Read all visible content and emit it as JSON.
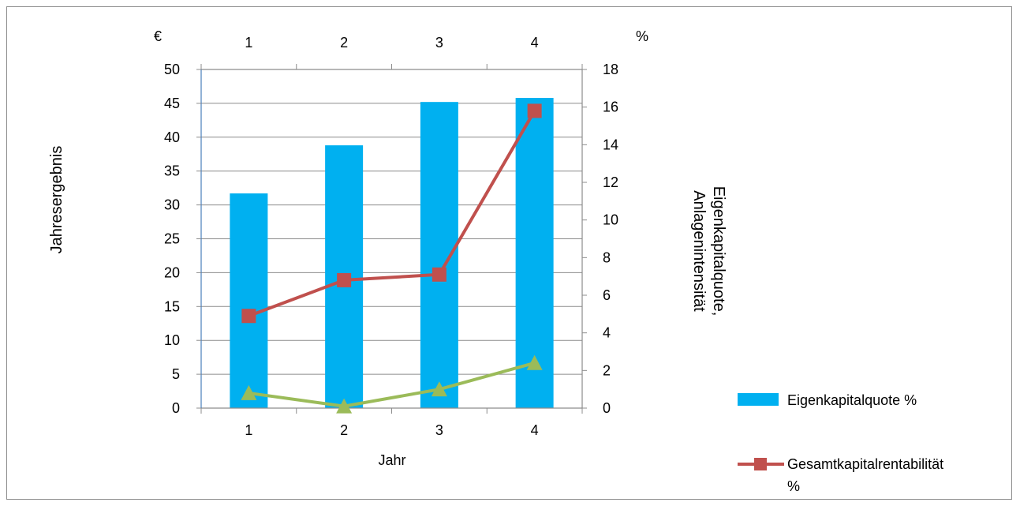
{
  "chart_data": {
    "type": "bar",
    "categories": [
      "1",
      "2",
      "3",
      "4"
    ],
    "top_categories": [
      "1",
      "2",
      "3",
      "4"
    ],
    "xlabel": "Jahr",
    "ylabel_left": "Jahresergebnis",
    "ylabel_right_line1": "Eigenkapitalquote,",
    "ylabel_right_line2": "Anlagenintensität",
    "unit_left": "€",
    "unit_right": "%",
    "ylim_left": [
      0,
      50
    ],
    "ylim_right": [
      0,
      18
    ],
    "yticks_left": [
      "0",
      "5",
      "10",
      "15",
      "20",
      "25",
      "30",
      "35",
      "40",
      "45",
      "50"
    ],
    "yticks_right": [
      "0",
      "2",
      "4",
      "6",
      "8",
      "10",
      "12",
      "14",
      "16",
      "18"
    ],
    "grid": true,
    "legend_position": "right",
    "series": [
      {
        "name": "Eigenkapitalquote %",
        "type": "bar",
        "axis": "left",
        "color": "#00b0f0",
        "values": [
          31.7,
          38.8,
          45.2,
          45.8
        ]
      },
      {
        "name": "Gesamtkapitalrentabilität %",
        "legend_line1": "Gesamtkapitalrentabilität",
        "legend_line2": "%",
        "type": "line",
        "marker": "square",
        "axis": "right",
        "color": "#c0504d",
        "values": [
          4.9,
          6.8,
          7.1,
          15.8
        ]
      },
      {
        "type": "line",
        "marker": "triangle",
        "axis": "right",
        "color": "#9bbb59",
        "values": [
          0.8,
          0.1,
          1.0,
          2.4
        ]
      }
    ]
  }
}
